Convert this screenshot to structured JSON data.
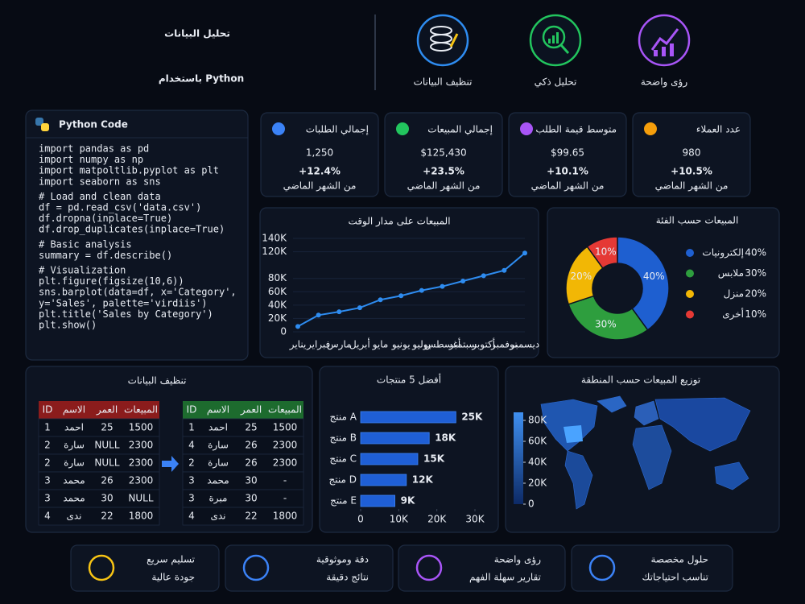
{
  "header": {
    "title": "تحليل البيانات",
    "subtitle": "باستخدام Python"
  },
  "features": [
    "تنظيف البيانات",
    "تحليل ذكي",
    "رؤى واضحة"
  ],
  "code": {
    "title": "Python Code",
    "blocks": [
      [
        "import pandas as pd",
        "import numpy as np",
        "import matpoltlib.pyplot as plt",
        "import seaborn as sns"
      ],
      [
        "# Load and clean data",
        "df = pd.read_csv('data.csv')",
        "df.dropna(inplace=True)",
        "df.drop_duplicates(inplace=True)"
      ],
      [
        "# Basic analysis",
        "summary = df.describe()"
      ],
      [
        "# Visualization",
        "plt.figure(figsize(10,6))",
        "sns.barplot(data=df, x='Category',",
        "y='Sales', palette='virdiis')",
        "plt.title('Sales by Category')",
        "plt.show()"
      ]
    ]
  },
  "kpis": [
    {
      "label": "إجمالي الطلبات",
      "value": "1,250",
      "change": "+12.4%",
      "note": "من الشهر الماضي"
    },
    {
      "label": "إجمالي المبيعات",
      "value": "$125,430",
      "change": "+23.5%",
      "note": "من الشهر الماضي"
    },
    {
      "label": "متوسط قيمة الطلب",
      "value": "$99.65",
      "change": "+10.1%",
      "note": "من الشهر الماضي"
    },
    {
      "label": "عدد العملاء",
      "value": "980",
      "change": "+10.5%",
      "note": "من الشهر الماضي"
    }
  ],
  "chart_data": [
    {
      "type": "line",
      "title": "المبيعات على مدار الوقت",
      "categories": [
        "يناير",
        "فبراير",
        "مارس",
        "أبريل",
        "مايو",
        "يونيو",
        "يوليو",
        "أغسطس",
        "سبتمبر",
        "أكتوبر",
        "نوفمبر",
        "ديسمبر"
      ],
      "values": [
        8000,
        25000,
        30000,
        36000,
        48000,
        54000,
        62000,
        68000,
        76000,
        84000,
        92000,
        118000
      ],
      "color": "#2e8cf0",
      "ylim": [
        0,
        140000
      ],
      "yticks": [
        0,
        {
          "value": 20000,
          "label": "20K"
        },
        {
          "value": 40000,
          "label": "40K"
        },
        {
          "value": 60000,
          "label": "60K"
        },
        {
          "value": 80000,
          "label": "80K"
        },
        {
          "value": 120000,
          "label": "120K"
        },
        {
          "value": 140000,
          "label": "140K"
        }
      ],
      "grid": true
    },
    {
      "type": "pie",
      "title": "المبيعات حسب الفئة",
      "categories": [
        "إلكترونيات",
        "ملابس",
        "منزل",
        "أخرى"
      ],
      "values": [
        40,
        30,
        20,
        10
      ],
      "value_labels": [
        "40%",
        "30%",
        "20%",
        "10%"
      ],
      "colors": [
        "#1e5fd0",
        "#2e9e3e",
        "#f2b705",
        "#e53935"
      ]
    },
    {
      "type": "hbar",
      "title": "أفضل 5 منتجات",
      "categories": [
        "منتج A",
        "منتج B",
        "منتج C",
        "منتج D",
        "منتج E"
      ],
      "values": [
        25000,
        18000,
        15000,
        12000,
        9000
      ],
      "value_labels": [
        "25K",
        "18K",
        "15K",
        "12K",
        "9K"
      ],
      "color": "#1f5fd6",
      "xlim": [
        0,
        30000
      ],
      "xticks": [
        0,
        {
          "value": 10000,
          "label": "10K"
        },
        {
          "value": 20000,
          "label": "20K"
        },
        {
          "value": 30000,
          "label": "30K"
        }
      ]
    },
    {
      "type": "map",
      "title": "توزيع المبيعات حسب المنطقة",
      "zlim": [
        0,
        80000
      ],
      "zticks": [
        0,
        {
          "value": 20000,
          "label": "20K"
        },
        {
          "value": 40000,
          "label": "40K"
        },
        {
          "value": 60000,
          "label": "60K"
        },
        {
          "value": 80000,
          "label": "80K"
        }
      ]
    }
  ],
  "cleaning": {
    "title": "تنظيف البيانات",
    "headers": [
      "ID",
      "الاسم",
      "العمر",
      "المبيعات"
    ],
    "before": [
      [
        1,
        "احمد",
        25,
        1500
      ],
      [
        2,
        "سارة",
        "NULL",
        2300
      ],
      [
        2,
        "سارة",
        "NULL",
        2300
      ],
      [
        3,
        "محمد",
        26,
        2300
      ],
      [
        3,
        "محمد",
        30,
        "NULL"
      ],
      [
        4,
        "ندى",
        22,
        1800
      ]
    ],
    "after": [
      [
        1,
        "احمد",
        25,
        1500
      ],
      [
        4,
        "سارة",
        26,
        2300
      ],
      [
        2,
        "سارة",
        26,
        2300
      ],
      [
        3,
        "محمد",
        30,
        "-"
      ],
      [
        3,
        "مبرة",
        30,
        "-"
      ],
      [
        4,
        "ندى",
        22,
        1800
      ]
    ]
  },
  "footer": [
    {
      "title": "تسليم سريع",
      "text": "جودة عالية"
    },
    {
      "title": "دقة وموثوقية",
      "text": "نتائج دقيقة"
    },
    {
      "title": "رؤى واضحة",
      "text": "تقارير سهلة الفهم"
    },
    {
      "title": "حلول مخصصة",
      "text": "تناسب احتياجاتك"
    }
  ]
}
